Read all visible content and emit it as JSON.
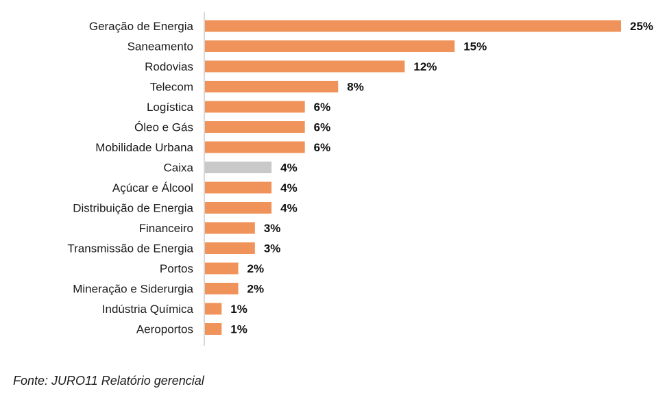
{
  "chart_data": {
    "type": "bar",
    "orientation": "horizontal",
    "categories": [
      "Geração de Energia",
      "Saneamento",
      "Rodovias",
      "Telecom",
      "Logística",
      "Óleo e Gás",
      "Mobilidade Urbana",
      "Caixa",
      "Açúcar e Álcool",
      "Distribuição de Energia",
      "Financeiro",
      "Transmissão de Energia",
      "Portos",
      "Mineração e Siderurgia",
      "Indústria Química",
      "Aeroportos"
    ],
    "values": [
      25,
      15,
      12,
      8,
      6,
      6,
      6,
      4,
      4,
      4,
      3,
      3,
      2,
      2,
      1,
      1
    ],
    "value_labels": [
      "25%",
      "15%",
      "12%",
      "8%",
      "6%",
      "6%",
      "6%",
      "4%",
      "4%",
      "4%",
      "3%",
      "3%",
      "2%",
      "2%",
      "1%",
      "1%"
    ],
    "bar_colors": [
      "#F0935A",
      "#F0935A",
      "#F0935A",
      "#F0935A",
      "#F0935A",
      "#F0935A",
      "#F0935A",
      "#C9C9C9",
      "#F0935A",
      "#F0935A",
      "#F0935A",
      "#F0935A",
      "#F0935A",
      "#F0935A",
      "#F0935A",
      "#F0935A"
    ],
    "title": "",
    "xlabel": "",
    "ylabel": "",
    "xlim": [
      0,
      25
    ],
    "grid": false,
    "legend": "none",
    "axis_color": "#BFBFBF"
  },
  "source_text": "Fonte: JURO11 Relatório gerencial"
}
